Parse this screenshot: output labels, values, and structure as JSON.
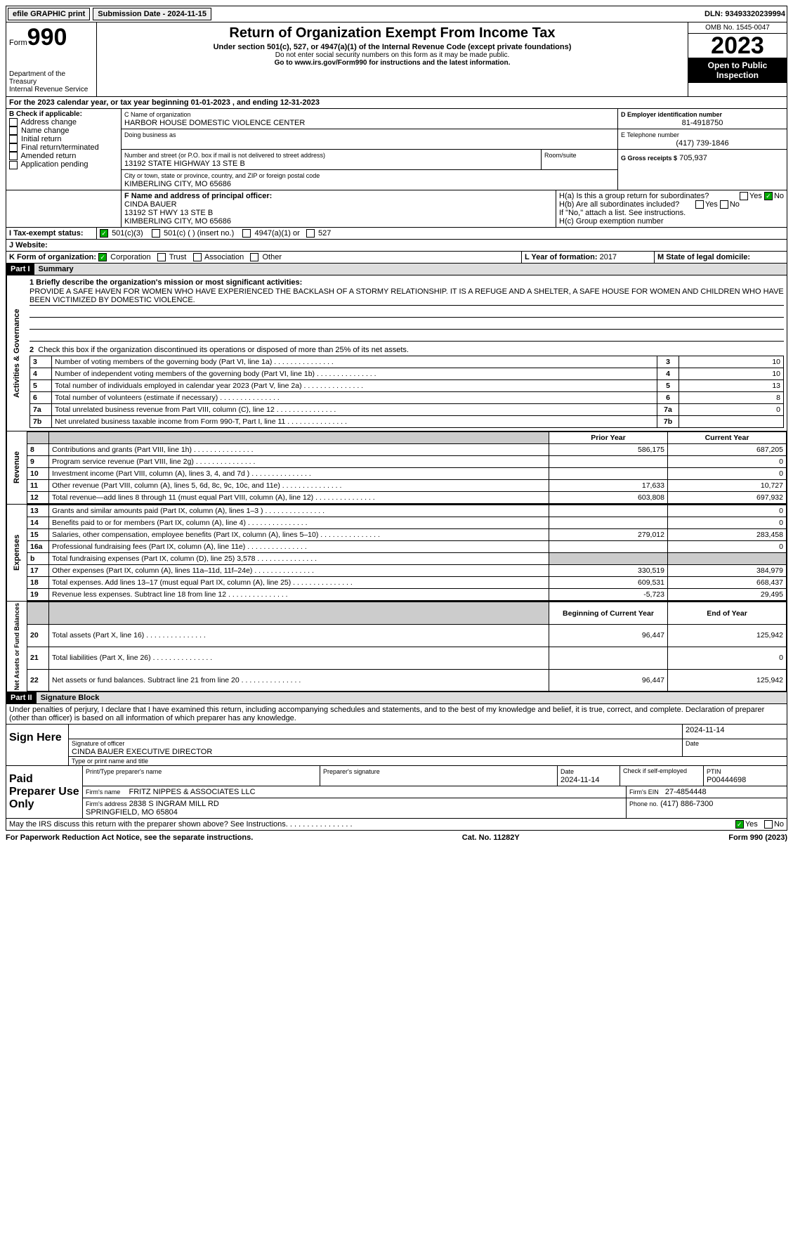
{
  "top": {
    "efile": "efile GRAPHIC print",
    "submission_label": "Submission Date - ",
    "submission_date": "2024-11-15",
    "dln_label": "DLN: ",
    "dln": "93493320239994"
  },
  "header": {
    "form_word": "Form",
    "form_number": "990",
    "dept": "Department of the Treasury\nInternal Revenue Service",
    "title": "Return of Organization Exempt From Income Tax",
    "subtitle": "Under section 501(c), 527, or 4947(a)(1) of the Internal Revenue Code (except private foundations)",
    "ssn_note": "Do not enter social security numbers on this form as it may be made public.",
    "goto": "Go to www.irs.gov/Form990 for instructions and the latest information.",
    "omb": "OMB No. 1545-0047",
    "year": "2023",
    "open": "Open to Public Inspection"
  },
  "periodA": "For the 2023 calendar year, or tax year beginning 01-01-2023    , and ending 12-31-2023",
  "boxB": {
    "label": "B Check if applicable:",
    "opts": [
      "Address change",
      "Name change",
      "Initial return",
      "Final return/terminated",
      "Amended return",
      "Application pending"
    ]
  },
  "boxC": {
    "name_lbl": "C Name of organization",
    "name": "HARBOR HOUSE DOMESTIC VIOLENCE CENTER",
    "dba_lbl": "Doing business as",
    "street_lbl": "Number and street (or P.O. box if mail is not delivered to street address)",
    "street": "13192 STATE HIGHWAY 13 STE B",
    "room_lbl": "Room/suite",
    "city_lbl": "City or town, state or province, country, and ZIP or foreign postal code",
    "city": "KIMBERLING CITY, MO  65686"
  },
  "boxD": {
    "lbl": "D Employer identification number",
    "val": "81-4918750"
  },
  "boxE": {
    "lbl": "E Telephone number",
    "val": "(417) 739-1846"
  },
  "boxG": {
    "lbl": "G Gross receipts $",
    "val": "705,937"
  },
  "boxF": {
    "lbl": "F  Name and address of principal officer:",
    "name": "CINDA BAUER",
    "addr1": "13192 ST HWY 13 STE B",
    "addr2": "KIMBERLING CITY, MO  65686"
  },
  "boxH": {
    "a": "H(a)  Is this a group return for subordinates?",
    "b": "H(b)  Are all subordinates included?",
    "note": "If \"No,\" attach a list. See instructions.",
    "c": "H(c)  Group exemption number"
  },
  "boxI": {
    "lbl": "I   Tax-exempt status:",
    "opts": [
      "501(c)(3)",
      "501(c) (  ) (insert no.)",
      "4947(a)(1) or",
      "527"
    ]
  },
  "boxJ": {
    "lbl": "J   Website:"
  },
  "boxK": {
    "lbl": "K Form of organization:",
    "opts": [
      "Corporation",
      "Trust",
      "Association",
      "Other"
    ]
  },
  "boxL": {
    "lbl": "L Year of formation:",
    "val": "2017"
  },
  "boxM": {
    "lbl": "M State of legal domicile:"
  },
  "part1": {
    "hdr": "Part I",
    "title": "Summary"
  },
  "mission_lbl": "1   Briefly describe the organization's mission or most significant activities:",
  "mission": "PROVIDE A SAFE HAVEN FOR WOMEN WHO HAVE EXPERIENCED THE BACKLASH OF A STORMY RELATIONSHIP. IT IS A REFUGE AND A SHELTER, A SAFE HOUSE FOR WOMEN AND CHILDREN WHO HAVE BEEN VICTIMIZED BY DOMESTIC VIOLENCE.",
  "line2": "Check this box       if the organization discontinued its operations or disposed of more than 25% of its net assets.",
  "gov_lines": [
    {
      "n": "3",
      "d": "Number of voting members of the governing body (Part VI, line 1a)",
      "v": "10"
    },
    {
      "n": "4",
      "d": "Number of independent voting members of the governing body (Part VI, line 1b)",
      "v": "10"
    },
    {
      "n": "5",
      "d": "Total number of individuals employed in calendar year 2023 (Part V, line 2a)",
      "v": "13"
    },
    {
      "n": "6",
      "d": "Total number of volunteers (estimate if necessary)",
      "v": "8"
    },
    {
      "n": "7a",
      "d": "Total unrelated business revenue from Part VIII, column (C), line 12",
      "v": "0"
    },
    {
      "n": "7b",
      "d": "Net unrelated business taxable income from Form 990-T, Part I, line 11",
      "v": ""
    }
  ],
  "rev_hdr": {
    "py": "Prior Year",
    "cy": "Current Year"
  },
  "rev_lines": [
    {
      "n": "8",
      "d": "Contributions and grants (Part VIII, line 1h)",
      "py": "586,175",
      "cy": "687,205"
    },
    {
      "n": "9",
      "d": "Program service revenue (Part VIII, line 2g)",
      "py": "",
      "cy": "0"
    },
    {
      "n": "10",
      "d": "Investment income (Part VIII, column (A), lines 3, 4, and 7d )",
      "py": "",
      "cy": "0"
    },
    {
      "n": "11",
      "d": "Other revenue (Part VIII, column (A), lines 5, 6d, 8c, 9c, 10c, and 11e)",
      "py": "17,633",
      "cy": "10,727"
    },
    {
      "n": "12",
      "d": "Total revenue—add lines 8 through 11 (must equal Part VIII, column (A), line 12)",
      "py": "603,808",
      "cy": "697,932"
    }
  ],
  "exp_lines": [
    {
      "n": "13",
      "d": "Grants and similar amounts paid (Part IX, column (A), lines 1–3 )",
      "py": "",
      "cy": "0"
    },
    {
      "n": "14",
      "d": "Benefits paid to or for members (Part IX, column (A), line 4)",
      "py": "",
      "cy": "0"
    },
    {
      "n": "15",
      "d": "Salaries, other compensation, employee benefits (Part IX, column (A), lines 5–10)",
      "py": "279,012",
      "cy": "283,458"
    },
    {
      "n": "16a",
      "d": "Professional fundraising fees (Part IX, column (A), line 11e)",
      "py": "",
      "cy": "0"
    },
    {
      "n": "b",
      "d": "Total fundraising expenses (Part IX, column (D), line 25) 3,578",
      "py": "shaded",
      "cy": "shaded"
    },
    {
      "n": "17",
      "d": "Other expenses (Part IX, column (A), lines 11a–11d, 11f–24e)",
      "py": "330,519",
      "cy": "384,979"
    },
    {
      "n": "18",
      "d": "Total expenses. Add lines 13–17 (must equal Part IX, column (A), line 25)",
      "py": "609,531",
      "cy": "668,437"
    },
    {
      "n": "19",
      "d": "Revenue less expenses. Subtract line 18 from line 12",
      "py": "-5,723",
      "cy": "29,495"
    }
  ],
  "na_hdr": {
    "py": "Beginning of Current Year",
    "cy": "End of Year"
  },
  "na_lines": [
    {
      "n": "20",
      "d": "Total assets (Part X, line 16)",
      "py": "96,447",
      "cy": "125,942"
    },
    {
      "n": "21",
      "d": "Total liabilities (Part X, line 26)",
      "py": "",
      "cy": "0"
    },
    {
      "n": "22",
      "d": "Net assets or fund balances. Subtract line 21 from line 20",
      "py": "96,447",
      "cy": "125,942"
    }
  ],
  "part2": {
    "hdr": "Part II",
    "title": "Signature Block"
  },
  "perjury": "Under penalties of perjury, I declare that I have examined this return, including accompanying schedules and statements, and to the best of my knowledge and belief, it is true, correct, and complete. Declaration of preparer (other than officer) is based on all information of which preparer has any knowledge.",
  "sign": {
    "here": "Sign Here",
    "sig_lbl": "Signature of officer",
    "officer": "CINDA BAUER  EXECUTIVE DIRECTOR",
    "type_lbl": "Type or print name and title",
    "date_lbl": "Date",
    "date": "2024-11-14"
  },
  "paid": {
    "title": "Paid Preparer Use Only",
    "name_lbl": "Print/Type preparer's name",
    "sig_lbl": "Preparer's signature",
    "date_lbl": "Date",
    "date": "2024-11-14",
    "check_lbl": "Check        if self-employed",
    "ptin_lbl": "PTIN",
    "ptin": "P00444698",
    "firm_name_lbl": "Firm's name",
    "firm_name": "FRITZ NIPPES & ASSOCIATES LLC",
    "firm_ein_lbl": "Firm's EIN",
    "firm_ein": "27-4854448",
    "firm_addr_lbl": "Firm's address",
    "firm_addr": "2838 S INGRAM MILL RD\nSPRINGFIELD, MO  65804",
    "phone_lbl": "Phone no.",
    "phone": "(417) 886-7300"
  },
  "discuss": "May the IRS discuss this return with the preparer shown above? See Instructions.",
  "footer": {
    "pra": "For Paperwork Reduction Act Notice, see the separate instructions.",
    "cat": "Cat. No. 11282Y",
    "form": "Form 990 (2023)"
  },
  "side_labels": {
    "gov": "Activities & Governance",
    "rev": "Revenue",
    "exp": "Expenses",
    "na": "Net Assets or Fund Balances"
  },
  "yn": {
    "yes": "Yes",
    "no": "No"
  }
}
